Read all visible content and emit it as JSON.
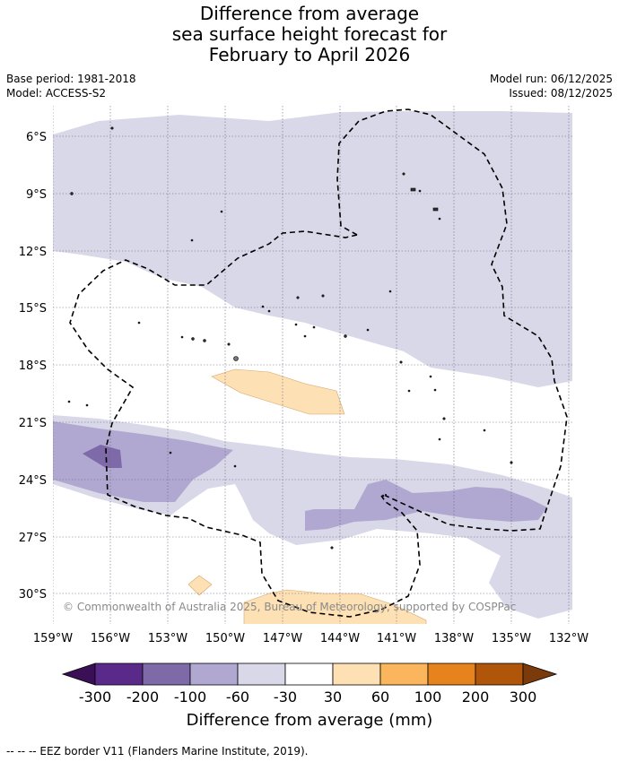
{
  "title": {
    "line1": "Difference from average",
    "line2": "sea surface height forecast for",
    "line3": "February to April 2026"
  },
  "meta": {
    "base_period": "Base period: 1981-2018",
    "model": "Model: ACCESS-S2",
    "model_run": "Model run: 06/12/2025",
    "issued": "Issued: 08/12/2025"
  },
  "axes": {
    "lat_labels": [
      "6°S",
      "9°S",
      "12°S",
      "15°S",
      "18°S",
      "21°S",
      "24°S",
      "27°S",
      "30°S"
    ],
    "lon_labels": [
      "159°W",
      "156°W",
      "153°W",
      "150°W",
      "147°W",
      "144°W",
      "141°W",
      "138°W",
      "135°W",
      "132°W"
    ]
  },
  "copyright": "© Commonwealth of Australia 2025, Bureau of Meteorology, supported by COSPPac",
  "colorbar": {
    "title": "Difference from average (mm)",
    "tick_labels": [
      "-300",
      "-200",
      "-100",
      "-60",
      "-30",
      "30",
      "60",
      "100",
      "200",
      "300"
    ],
    "colors": [
      "#3b0f55",
      "#5a2a8a",
      "#7e6aa8",
      "#b0a8d0",
      "#d8d8e8",
      "#ffffff",
      "#fde0b4",
      "#fbb55c",
      "#e6831c",
      "#b0560a",
      "#7a3a0a"
    ]
  },
  "footer": "--  --  -- EEZ border V11 (Flanders Marine Institute, 2019)."
}
